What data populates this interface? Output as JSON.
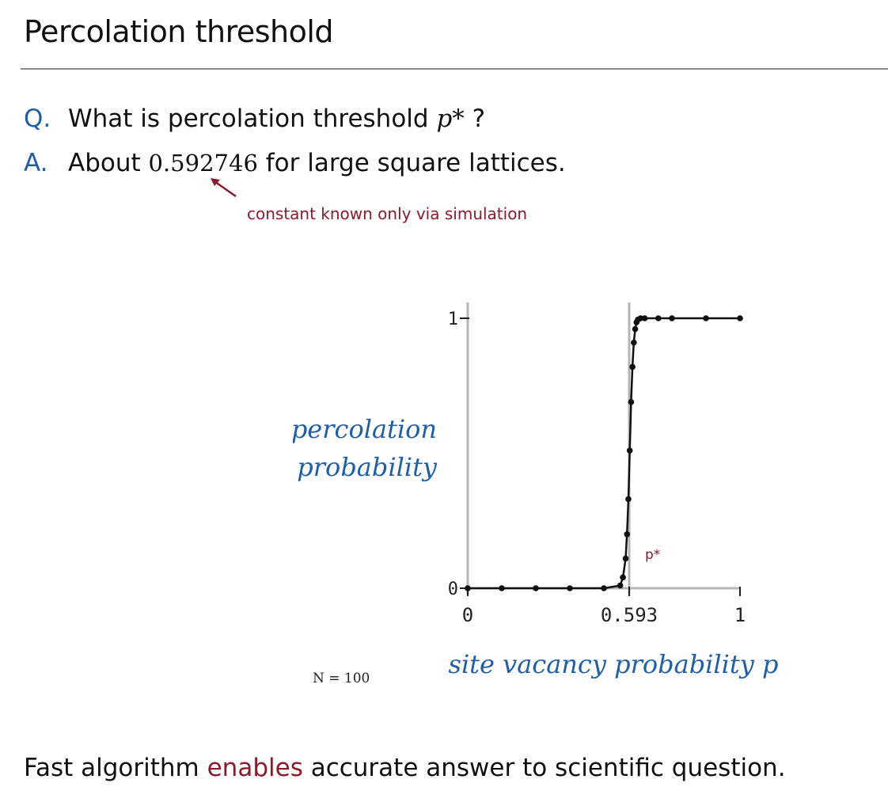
{
  "slide": {
    "title": "Percolation threshold",
    "question": {
      "label": "Q.",
      "text": "What is percolation threshold",
      "variable": "p*",
      "suffix": " ?"
    },
    "answer": {
      "label": "A.",
      "prefix": "About ",
      "value": "0.592746",
      "suffix": " for large square lattices."
    },
    "annotation": "constant known only via simulation",
    "footer": {
      "prefix": "Fast algorithm ",
      "highlight": "enables",
      "suffix": " accurate answer to scientific question."
    }
  },
  "colors": {
    "accent_blue": "#1f5ea8",
    "accent_red": "#8b1a2b",
    "curve": "#111111",
    "axis": "#b5b5b5"
  },
  "chart_data": {
    "type": "line",
    "ylabel": [
      "percolation",
      "probability"
    ],
    "xlabel": "site vacancy probability p",
    "n_label": "N = 100",
    "threshold_label": "p*",
    "threshold": 0.593,
    "xlim": [
      0,
      1
    ],
    "ylim": [
      0,
      1
    ],
    "xticks": [
      {
        "value": 0,
        "label": "0"
      },
      {
        "value": 0.593,
        "label": "0.593"
      },
      {
        "value": 1,
        "label": "1"
      }
    ],
    "yticks": [
      {
        "value": 0,
        "label": "0"
      },
      {
        "value": 1,
        "label": "1"
      }
    ],
    "grid": false,
    "series": [
      {
        "x": [
          0.0,
          0.125,
          0.25,
          0.375,
          0.5,
          0.56,
          0.57,
          0.58,
          0.585,
          0.59,
          0.595,
          0.6,
          0.605,
          0.61,
          0.615,
          0.62,
          0.625,
          0.635,
          0.65,
          0.7,
          0.75,
          0.875,
          1.0
        ],
        "y": [
          0.0,
          0.0,
          0.0,
          0.0,
          0.0,
          0.01,
          0.04,
          0.11,
          0.2,
          0.33,
          0.51,
          0.69,
          0.82,
          0.91,
          0.96,
          0.985,
          0.995,
          1.0,
          1.0,
          1.0,
          1.0,
          1.0,
          1.0
        ]
      }
    ]
  }
}
